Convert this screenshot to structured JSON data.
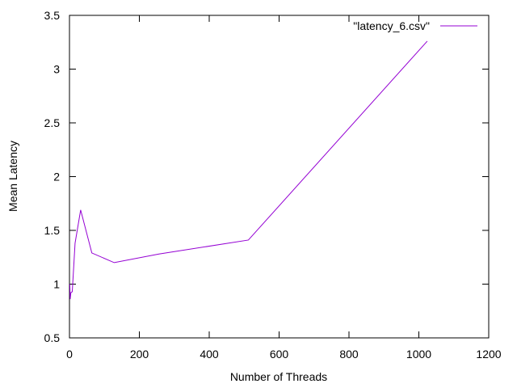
{
  "chart_data": {
    "type": "line",
    "title": "",
    "xlabel": "Number of Threads",
    "ylabel": "Mean Latency",
    "xlim": [
      0,
      1200
    ],
    "ylim": [
      0.5,
      3.5
    ],
    "xticks": [
      0,
      200,
      400,
      600,
      800,
      1000,
      1200
    ],
    "yticks": [
      0.5,
      1,
      1.5,
      2,
      2.5,
      3,
      3.5
    ],
    "xtick_labels": [
      "0",
      "200",
      "400",
      "600",
      "800",
      "1000",
      "1200"
    ],
    "ytick_labels": [
      "0.5",
      "1",
      "1.5",
      "2",
      "2.5",
      "3",
      "3.5"
    ],
    "grid": false,
    "legend_position": "top-right",
    "series": [
      {
        "name": "\"latency_6.csv\"",
        "color": "#9400d3",
        "x": [
          1,
          2,
          4,
          8,
          16,
          32,
          64,
          128,
          256,
          512,
          1024
        ],
        "y": [
          1.0,
          0.86,
          0.92,
          0.93,
          1.38,
          1.69,
          1.29,
          1.2,
          1.28,
          1.41,
          3.26
        ]
      }
    ]
  }
}
